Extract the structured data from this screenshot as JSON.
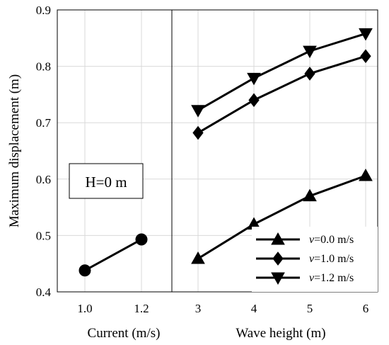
{
  "chart_data": [
    {
      "type": "line",
      "panel": "left",
      "x": [
        1.0,
        1.2
      ],
      "x_tick_labels": [
        "1.0",
        "1.2"
      ],
      "xlabel": "Current (m/s)",
      "ylabel": "Maximum displacement (m)",
      "ylim": [
        0.4,
        0.9
      ],
      "y_ticks": [
        "0.4",
        "0.5",
        "0.6",
        "0.7",
        "0.8",
        "0.9"
      ],
      "grid": true,
      "annotation": "H=0 m",
      "series": [
        {
          "marker": "circle",
          "x": [
            1.0,
            1.2
          ],
          "values": [
            0.438,
            0.493
          ]
        }
      ]
    },
    {
      "type": "line",
      "panel": "right",
      "x": [
        3,
        4,
        5,
        6
      ],
      "x_tick_labels": [
        "3",
        "4",
        "5",
        "6"
      ],
      "xlabel": "Wave height (m)",
      "ylim": [
        0.4,
        0.9
      ],
      "grid": true,
      "legend_position": "bottom-right",
      "series": [
        {
          "name": "v=0.0 m/s",
          "legend_var": "v",
          "legend_rest": "=0.0 m/s",
          "marker": "triangle-up",
          "values": [
            0.459,
            0.52,
            0.57,
            0.606
          ]
        },
        {
          "name": "v=1.0 m/s",
          "legend_var": "v",
          "legend_rest": "=1.0 m/s",
          "marker": "diamond",
          "values": [
            0.682,
            0.74,
            0.787,
            0.818
          ]
        },
        {
          "name": "v=1.2 m/s",
          "legend_var": "v",
          "legend_rest": "=1.2 m/s",
          "marker": "triangle-down",
          "values": [
            0.722,
            0.779,
            0.827,
            0.858
          ]
        }
      ]
    }
  ]
}
